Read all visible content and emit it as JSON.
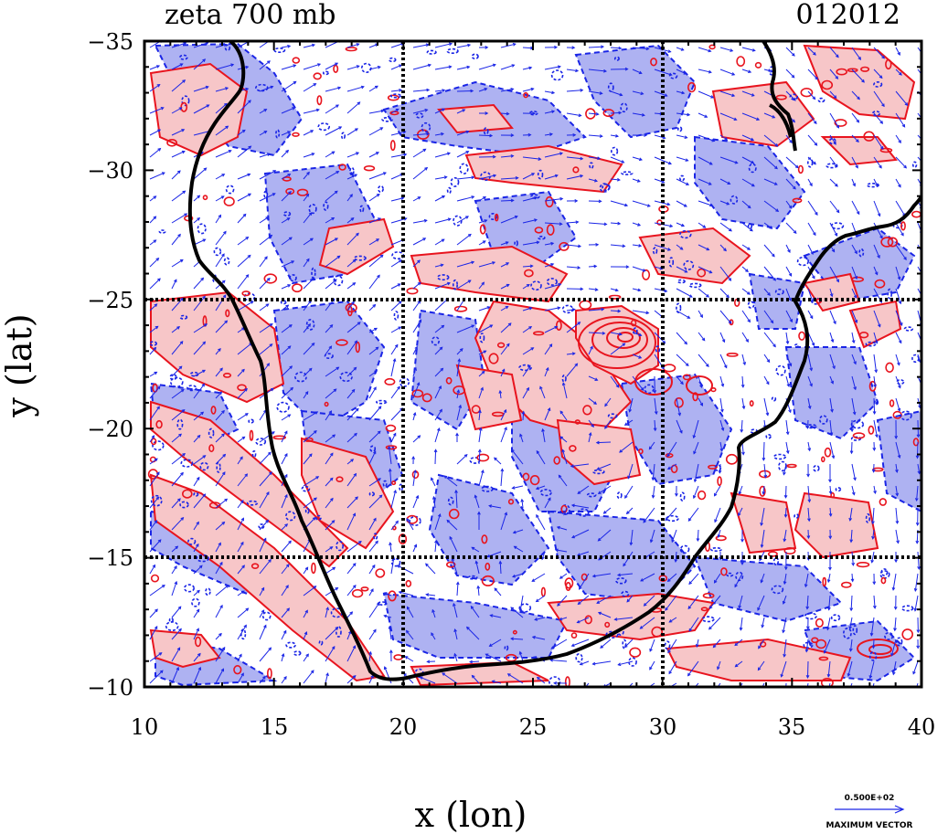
{
  "title": {
    "left": "zeta 700 mb",
    "right": "012012"
  },
  "axes": {
    "x_label": "x (lon)",
    "y_label": "y (lat)",
    "x_range": [
      10,
      40
    ],
    "y_range": [
      -10,
      -35
    ],
    "x_ticks": [
      "10",
      "15",
      "20",
      "25",
      "30",
      "35",
      "40"
    ],
    "y_ticks": [
      "−35",
      "−30",
      "−25",
      "−20",
      "−15",
      "−10"
    ],
    "dotted_grid_lon": [
      20,
      30
    ],
    "dotted_grid_lat": [
      -25,
      -15
    ]
  },
  "legend": {
    "vector_magnitude": "0.500E+02",
    "vector_label": "MAXIMUM VECTOR"
  },
  "colors": {
    "positive_fill": "#f7c6c8",
    "positive_line": "#e8141e",
    "negative_fill": "#aeb2f2",
    "negative_line": "#1a25e6",
    "coast": "#000000",
    "vector": "#1a25e6"
  }
}
